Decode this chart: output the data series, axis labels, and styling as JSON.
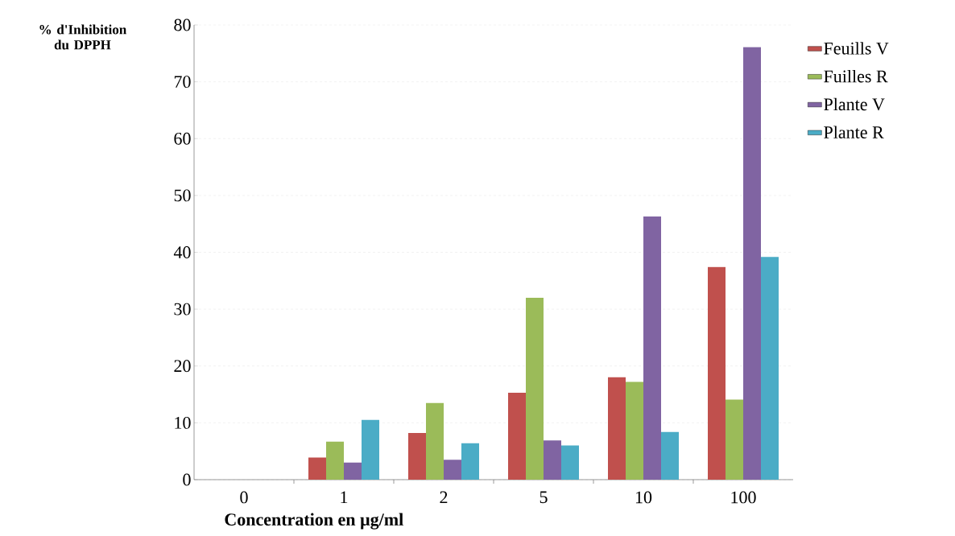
{
  "chart_data": {
    "type": "bar",
    "ylabel": "% d'Inhibition du DPPH",
    "xlabel": "Concentration en µg/ml",
    "categories": [
      "0",
      "1",
      "2",
      "5",
      "10",
      "100"
    ],
    "series": [
      {
        "name": "Feuills V",
        "color": "#c0504d",
        "values": [
          null,
          3.9,
          8.2,
          15.3,
          18.0,
          37.4
        ]
      },
      {
        "name": "Fuilles  R",
        "color": "#9bbb59",
        "values": [
          null,
          6.7,
          13.5,
          32.0,
          17.2,
          14.1
        ]
      },
      {
        "name": "Plante V",
        "color": "#8064a2",
        "values": [
          null,
          3.0,
          3.5,
          6.9,
          46.3,
          76.1
        ]
      },
      {
        "name": "Plante R",
        "color": "#4bacc6",
        "values": [
          null,
          10.5,
          6.4,
          6.0,
          8.4,
          39.2
        ]
      }
    ],
    "ylim": [
      0,
      80
    ],
    "yticks": [
      0,
      10,
      20,
      30,
      40,
      50,
      60,
      70,
      80
    ],
    "grid": "y",
    "legend": "right"
  }
}
